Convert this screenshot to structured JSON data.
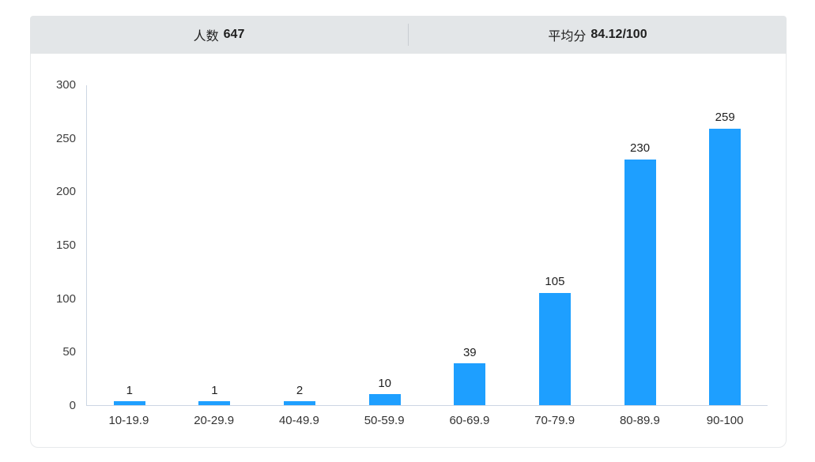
{
  "stats_bar": {
    "left": {
      "label": "人数",
      "value": "647"
    },
    "right": {
      "label": "平均分",
      "value": "84.12/100"
    }
  },
  "chart_data": {
    "type": "bar",
    "title": "",
    "xlabel": "",
    "ylabel": "",
    "categories": [
      "10-19.9",
      "20-29.9",
      "40-49.9",
      "50-59.9",
      "60-69.9",
      "70-79.9",
      "80-89.9",
      "90-100"
    ],
    "values": [
      1,
      1,
      2,
      10,
      39,
      105,
      230,
      259
    ],
    "ylim": [
      0,
      300
    ],
    "yticks": [
      0,
      50,
      100,
      150,
      200,
      250,
      300
    ],
    "grid": false,
    "legend": "none",
    "value_labels_shown": true
  },
  "colors": {
    "bar": "#1e9fff",
    "header_bg": "#e3e6e8",
    "axis_line": "#ccd6e3",
    "card_border": "#e7e9eb",
    "divider": "#c9cdd1"
  }
}
